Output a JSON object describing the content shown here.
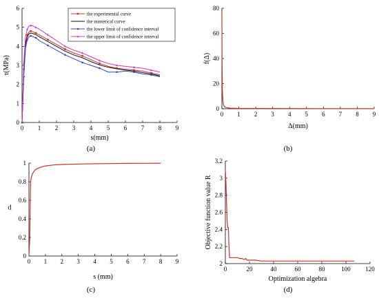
{
  "panel_labels": [
    "(a)",
    "(b)",
    "(c)",
    "(d)"
  ],
  "chart_data": [
    {
      "id": "a",
      "type": "line",
      "title": "",
      "xlabel": "s(mm)",
      "ylabel": "τ(MPa)",
      "xlim": [
        0,
        9
      ],
      "ylim": [
        0,
        6
      ],
      "xticks": [
        0,
        1,
        2,
        3,
        4,
        5,
        6,
        7,
        8,
        9
      ],
      "yticks": [
        0,
        1,
        2,
        3,
        4,
        5,
        6
      ],
      "grid": false,
      "legend_position": "top-right",
      "series": [
        {
          "name": "the experimental curve",
          "color": "#cc3322",
          "marker": "square",
          "x": [
            0,
            0.05,
            0.1,
            0.2,
            0.3,
            0.4,
            0.5,
            0.6,
            0.8,
            1.0,
            1.5,
            2.0,
            2.5,
            3.0,
            3.5,
            4.0,
            4.5,
            5.0,
            5.5,
            6.0,
            6.5,
            7.0,
            7.5,
            8.0
          ],
          "y": [
            0,
            1.4,
            2.8,
            4.2,
            4.6,
            4.75,
            4.8,
            4.78,
            4.7,
            4.6,
            4.35,
            4.1,
            3.85,
            3.65,
            3.5,
            3.3,
            3.1,
            2.95,
            2.85,
            2.8,
            2.75,
            2.7,
            2.6,
            2.5
          ]
        },
        {
          "name": "the numerical curve",
          "color": "#111111",
          "marker": "none",
          "x": [
            0,
            0.05,
            0.1,
            0.2,
            0.3,
            0.4,
            0.5,
            0.6,
            0.8,
            1.0,
            1.5,
            2.0,
            2.5,
            3.0,
            3.5,
            4.0,
            4.5,
            5.0,
            5.5,
            6.0,
            6.5,
            7.0,
            7.5,
            8.0
          ],
          "y": [
            0,
            1.3,
            2.6,
            4.1,
            4.5,
            4.65,
            4.7,
            4.68,
            4.62,
            4.5,
            4.25,
            4.0,
            3.75,
            3.55,
            3.4,
            3.2,
            3.02,
            2.9,
            2.82,
            2.75,
            2.7,
            2.62,
            2.55,
            2.45
          ]
        },
        {
          "name": "the lower limit of confidence interval",
          "color": "#3344bb",
          "marker": "circle",
          "x": [
            0,
            0.05,
            0.1,
            0.2,
            0.3,
            0.4,
            0.5,
            0.6,
            0.8,
            1.0,
            1.5,
            2.0,
            2.5,
            3.0,
            3.5,
            4.0,
            4.5,
            5.0,
            5.5,
            6.0,
            6.5,
            7.0,
            7.5,
            8.0
          ],
          "y": [
            0,
            1.2,
            2.4,
            3.9,
            4.35,
            4.5,
            4.55,
            4.52,
            4.45,
            4.3,
            4.05,
            3.8,
            3.55,
            3.35,
            3.15,
            3.0,
            2.85,
            2.65,
            2.65,
            2.7,
            2.65,
            2.55,
            2.5,
            2.4
          ]
        },
        {
          "name": "the upper limit of confidence interval",
          "color": "#cc33cc",
          "marker": "triangle",
          "x": [
            0,
            0.05,
            0.1,
            0.2,
            0.3,
            0.4,
            0.5,
            0.6,
            0.8,
            1.0,
            1.5,
            2.0,
            2.5,
            3.0,
            3.5,
            4.0,
            4.5,
            5.0,
            5.5,
            6.0,
            6.5,
            7.0,
            7.5,
            8.0
          ],
          "y": [
            0,
            1.6,
            3.1,
            4.5,
            4.9,
            5.05,
            5.1,
            5.08,
            5.0,
            4.9,
            4.6,
            4.3,
            4.0,
            3.8,
            3.65,
            3.45,
            3.25,
            3.1,
            3.0,
            2.95,
            2.9,
            2.85,
            2.75,
            2.65
          ]
        }
      ]
    },
    {
      "id": "b",
      "type": "line",
      "title": "",
      "xlabel": "Δ(mm)",
      "ylabel": "f(Δ)",
      "xlim": [
        0,
        9
      ],
      "ylim": [
        0,
        80
      ],
      "xticks": [
        0,
        1,
        2,
        3,
        4,
        5,
        6,
        7,
        8,
        9
      ],
      "yticks": [
        0,
        20,
        40,
        60,
        80
      ],
      "grid": false,
      "series": [
        {
          "color": "#cc3322",
          "x": [
            0,
            0.01,
            0.02,
            0.03,
            0.05,
            0.08,
            0.1,
            0.15,
            0.2,
            0.3,
            0.5,
            1.0,
            2.0,
            4.0,
            6.0,
            8.0,
            9.0
          ],
          "y": [
            78,
            40,
            25,
            15,
            8,
            4,
            3,
            1.8,
            1.2,
            0.8,
            0.5,
            0.3,
            0.2,
            0.15,
            0.12,
            0.1,
            0.1
          ]
        }
      ]
    },
    {
      "id": "c",
      "type": "line",
      "title": "",
      "xlabel": "s (mm)",
      "ylabel": "d",
      "xlim": [
        0,
        9
      ],
      "ylim": [
        0,
        1
      ],
      "xticks": [
        0,
        1,
        2,
        3,
        4,
        5,
        6,
        7,
        8,
        9
      ],
      "yticks": [
        0,
        0.2,
        0.4,
        0.6,
        0.8,
        1
      ],
      "grid": false,
      "series": [
        {
          "color": "#cc3322",
          "x": [
            0,
            0.05,
            0.1,
            0.15,
            0.2,
            0.3,
            0.4,
            0.5,
            0.7,
            1.0,
            1.5,
            2.0,
            3.0,
            4.0,
            5.0,
            6.0,
            7.0,
            8.0
          ],
          "y": [
            0,
            0.2,
            0.8,
            0.85,
            0.88,
            0.91,
            0.93,
            0.94,
            0.955,
            0.97,
            0.98,
            0.985,
            0.99,
            0.993,
            0.995,
            0.997,
            0.998,
            0.999
          ]
        }
      ]
    },
    {
      "id": "d",
      "type": "line",
      "title": "",
      "xlabel": "Optimization algebra",
      "ylabel": "Objective function value R",
      "xlim": [
        0,
        120
      ],
      "ylim": [
        2,
        3.2
      ],
      "xticks": [
        0,
        20,
        40,
        60,
        80,
        100,
        120
      ],
      "yticks": [
        2,
        2.2,
        2.4,
        2.6,
        2.8,
        3,
        3.2
      ],
      "grid": false,
      "series": [
        {
          "color": "#cc3322",
          "x": [
            0,
            0.5,
            1,
            1.5,
            2,
            2.5,
            3,
            3.5,
            4,
            6,
            8,
            10,
            12,
            14,
            15,
            16,
            17,
            18,
            20,
            25,
            30,
            40,
            50,
            60,
            70,
            80,
            90,
            100,
            107
          ],
          "y": [
            3.1,
            2.95,
            2.7,
            2.5,
            2.42,
            2.42,
            2.2,
            2.07,
            2.07,
            2.07,
            2.07,
            2.07,
            2.06,
            2.06,
            2.05,
            2.05,
            2.06,
            2.04,
            2.04,
            2.04,
            2.03,
            2.03,
            2.03,
            2.03,
            2.03,
            2.03,
            2.03,
            2.03,
            2.03
          ]
        }
      ]
    }
  ]
}
